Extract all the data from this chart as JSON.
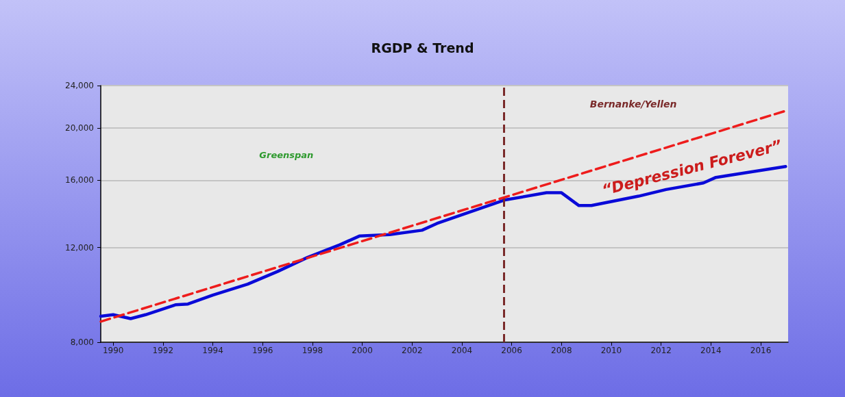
{
  "chart_data": {
    "type": "line",
    "title": "RGDP & Trend",
    "xlim": [
      1989.5,
      2017.1
    ],
    "xticks": [
      1990,
      1992,
      1994,
      1996,
      1998,
      2000,
      2002,
      2004,
      2006,
      2008,
      2010,
      2012,
      2014,
      2016
    ],
    "ylim": [
      8000,
      24000
    ],
    "yticks": [
      {
        "value": 8000,
        "label": "8,000"
      },
      {
        "value": 12000,
        "label": "12,000"
      },
      {
        "value": 16000,
        "label": "16,000"
      },
      {
        "value": 20000,
        "label": "20,000"
      },
      {
        "value": 24000,
        "label": "24,000"
      }
    ],
    "log": "y",
    "grid": "y",
    "series": [
      {
        "color": "#0a0ad8",
        "line_style": "solid",
        "x": [
          1989.5,
          1990,
          1990.7,
          1991.3,
          1992.5,
          1993,
          1994,
          1995.4,
          1996.6,
          1997.8,
          1999.1,
          1999.9,
          2001.1,
          2002.4,
          2003,
          2005.7,
          2007.4,
          2008,
          2008.7,
          2009.2,
          2011.1,
          2012.2,
          2013.7,
          2014.2,
          2017
        ],
        "values": [
          8940,
          9000,
          8850,
          9000,
          9390,
          9420,
          9790,
          10260,
          10830,
          11500,
          12140,
          12610,
          12680,
          12920,
          13300,
          14700,
          15170,
          15170,
          14360,
          14360,
          14950,
          15380,
          15820,
          16200,
          16970
        ]
      },
      {
        "color": "#ee1c1c",
        "line_style": "dashed",
        "x": [
          1989.5,
          2017
        ],
        "values": [
          8740,
          21540
        ]
      }
    ],
    "ref_lines": [
      {
        "axis": "x",
        "value": 2005.7,
        "label": "Bernanke/Yellen",
        "color": "#7a2a2a",
        "line_style": "dashed"
      }
    ],
    "annotations": [
      "Greenspan",
      "“Depression Forever”"
    ]
  }
}
